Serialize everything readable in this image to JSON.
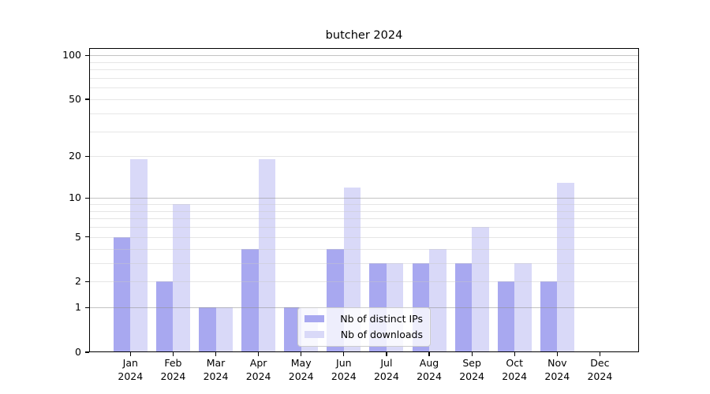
{
  "chart_data": {
    "type": "bar",
    "title": "butcher 2024",
    "categories": [
      "Jan 2024",
      "Feb 2024",
      "Mar 2024",
      "Apr 2024",
      "May 2024",
      "Jun 2024",
      "Jul 2024",
      "Aug 2024",
      "Sep 2024",
      "Oct 2024",
      "Nov 2024",
      "Dec 2024"
    ],
    "series": [
      {
        "name": "Nb of distinct IPs",
        "color": "#a8a8f0",
        "values": [
          5,
          2,
          1,
          4,
          1,
          4,
          3,
          3,
          3,
          2,
          2,
          0
        ]
      },
      {
        "name": "Nb of downloads",
        "color": "#d9d9f8",
        "values": [
          19,
          9,
          1,
          19,
          1,
          12,
          3,
          4,
          6,
          3,
          13,
          0
        ]
      }
    ],
    "xlabel": "",
    "ylabel": "",
    "yscale": "log1p",
    "ylim": [
      0,
      112
    ],
    "y_ticks": [
      0,
      1,
      2,
      5,
      10,
      20,
      50,
      100
    ],
    "y_tick_labels": [
      "0",
      "1",
      "2",
      "5",
      "10",
      "20",
      "50",
      "100"
    ],
    "minor_grid_values": [
      2,
      3,
      4,
      5,
      6,
      7,
      8,
      9,
      20,
      30,
      40,
      50,
      60,
      70,
      80,
      90
    ],
    "major_grid_values": [
      1,
      10,
      100
    ],
    "grid": "on, drawn above bars",
    "legend_position": "lower center"
  },
  "colors": {
    "series_ips": "#a8a8f0",
    "series_downloads": "#d9d9f8",
    "axis": "#000000",
    "grid_major": "#b4b4b4",
    "grid_minor": "#e6e6e6",
    "background": "#ffffff"
  }
}
